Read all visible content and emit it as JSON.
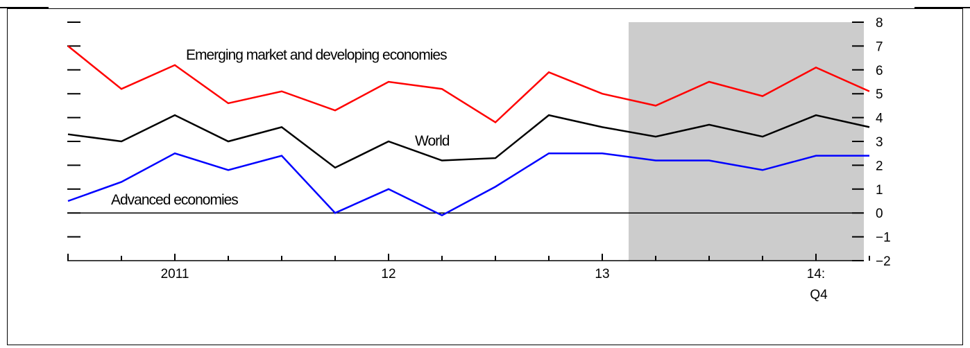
{
  "chart_data": {
    "type": "line",
    "x": [
      "2010:Q3",
      "2010:Q4",
      "2011:Q1",
      "2011:Q2",
      "2011:Q3",
      "2011:Q4",
      "2012:Q1",
      "2012:Q2",
      "2012:Q3",
      "2012:Q4",
      "2013:Q1",
      "2013:Q2",
      "2013:Q3",
      "2013:Q4",
      "2014:Q1",
      "2014:Q2"
    ],
    "x_tick_labels": [
      {
        "x": "2011:Q1",
        "text": "2011"
      },
      {
        "x": "2012:Q1",
        "text": "12"
      },
      {
        "x": "2013:Q1",
        "text": "13"
      },
      {
        "x": "2014:Q1",
        "text": "14:"
      }
    ],
    "x_tick_sublabel": "Q4",
    "ylim": [
      -2,
      8
    ],
    "yticks": [
      "8",
      "7",
      "6",
      "5",
      "4",
      "3",
      "2",
      "1",
      "0",
      "−1",
      "−2"
    ],
    "ytick_values": [
      8,
      7,
      6,
      5,
      4,
      3,
      2,
      1,
      0,
      -1,
      -2
    ],
    "shaded_region": {
      "from": "2013:Q1",
      "to": "2014:Q2",
      "color": "#cccccc"
    },
    "series": [
      {
        "name": "Emerging market and developing economies",
        "color": "#ff0000",
        "values": [
          7.0,
          5.2,
          6.2,
          4.6,
          5.1,
          4.3,
          5.5,
          5.2,
          3.8,
          5.9,
          5.0,
          4.5,
          5.5,
          4.9,
          6.1,
          5.1
        ]
      },
      {
        "name": "World",
        "color": "#000000",
        "values": [
          3.3,
          3.0,
          4.1,
          3.0,
          3.6,
          1.9,
          3.0,
          2.2,
          2.3,
          4.1,
          3.6,
          3.2,
          3.7,
          3.2,
          4.1,
          3.6
        ]
      },
      {
        "name": "Advanced economies",
        "color": "#0000ff",
        "values": [
          0.5,
          1.3,
          2.5,
          1.8,
          2.4,
          0.0,
          1.0,
          -0.1,
          1.1,
          2.5,
          2.5,
          2.2,
          2.2,
          1.8,
          2.4,
          2.4
        ]
      }
    ],
    "zero_line": true,
    "grid": false
  }
}
